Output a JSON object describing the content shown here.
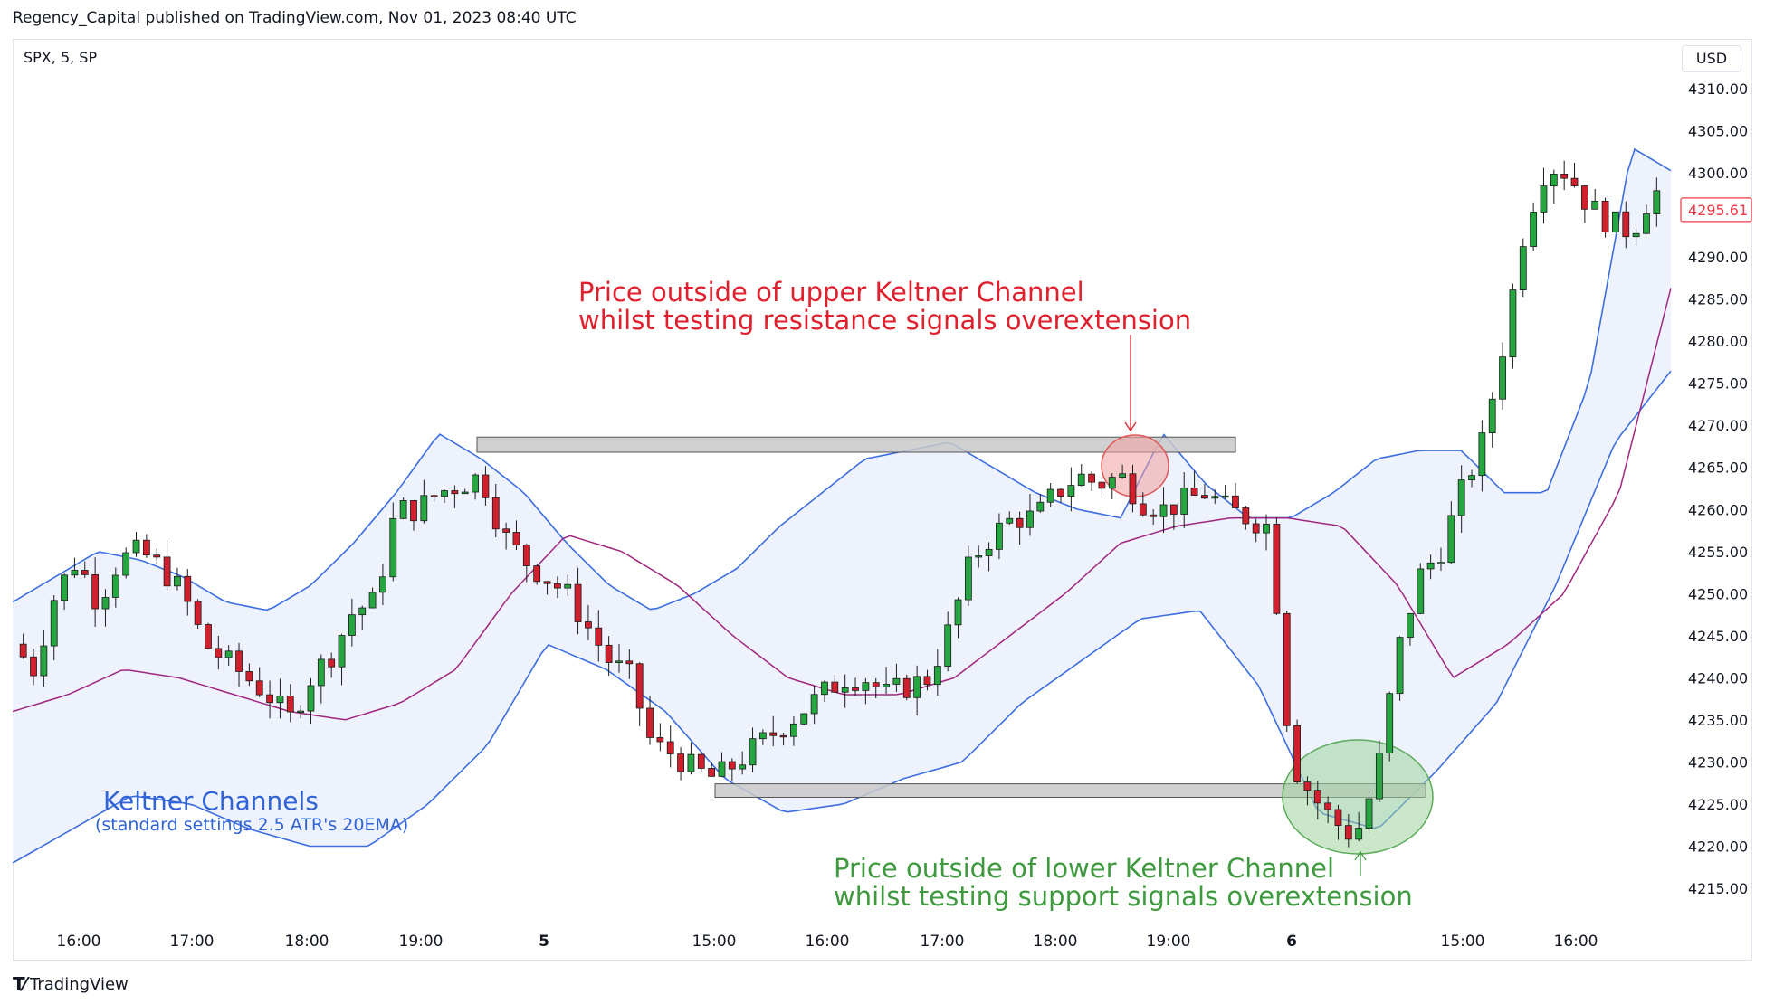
{
  "header": {
    "text": "Regency_Capital published on TradingView.com, Nov 01, 2023 08:40 UTC"
  },
  "symbol": "SPX, 5, SP",
  "currency": "USD",
  "footer": {
    "brand": "TradingView",
    "logo_icon": "tradingview-logo-icon"
  },
  "colors": {
    "up": "#089981",
    "up_fill": "#26a641",
    "down": "#f23645",
    "down_fill": "#d0202e",
    "band_line": "#3d6ee0",
    "band_fill": "#eef2fd",
    "mid_line": "#a0267e",
    "resist_text": "#e0202c",
    "support_text": "#3f9a3f",
    "keltner_text": "#2f63d6"
  },
  "chart_data": {
    "type": "candlestick",
    "title": "",
    "ylim": [
      4212,
      4313
    ],
    "y_ticks": [
      "4310.00",
      "4305.00",
      "4300.00",
      "4295.00",
      "4290.00",
      "4285.00",
      "4280.00",
      "4275.00",
      "4270.00",
      "4265.00",
      "4260.00",
      "4255.00",
      "4250.00",
      "4245.00",
      "4240.00",
      "4235.00",
      "4230.00",
      "4225.00",
      "4220.00",
      "4215.00"
    ],
    "x_ticks": [
      "16:00",
      "17:00",
      "18:00",
      "19:00",
      "5",
      "15:00",
      "16:00",
      "17:00",
      "18:00",
      "19:00",
      "6",
      "15:00",
      "16:00"
    ],
    "last_price": "4295.61",
    "close": [
      4244,
      4241,
      4250,
      4254,
      4249,
      4254,
      4255,
      4253,
      4250,
      4244,
      4242,
      4240,
      4238,
      4235,
      4240,
      4243,
      4248,
      4249,
      4260,
      4260,
      4262,
      4263,
      4264,
      4257,
      4254,
      4252,
      4250,
      4246,
      4242,
      4240,
      4232,
      4231,
      4229,
      4228,
      4230,
      4232,
      4234,
      4236,
      4238,
      4240,
      4240,
      4238,
      4239,
      4240,
      4246,
      4254,
      4257,
      4259,
      4259,
      4262,
      4264,
      4263,
      4264,
      4261,
      4260,
      4261,
      4262,
      4260,
      4259,
      4258,
      4230,
      4226,
      4223,
      4221,
      4228,
      4243,
      4252,
      4255,
      4262,
      4268,
      4280,
      4294,
      4301,
      4300,
      4296,
      4294,
      4293,
      4298,
      4296
    ],
    "upper_band": [
      4249,
      4252,
      4255,
      4254,
      4252,
      4249,
      4248,
      4251,
      4256,
      4262,
      4269,
      4266,
      4262,
      4256,
      4251,
      4248,
      4250,
      4253,
      4258,
      4262,
      4266,
      4267,
      4268,
      4265,
      4262,
      4260,
      4259,
      4269,
      4263,
      4259,
      4259,
      4262,
      4266,
      4267,
      4267,
      4262,
      4262,
      4275,
      4303,
      4300
    ],
    "middle_band": [
      4236,
      4238,
      4241,
      4240,
      4238,
      4236,
      4235,
      4237,
      4241,
      4250,
      4257,
      4255,
      4251,
      4245,
      4240,
      4238,
      4238,
      4240,
      4245,
      4250,
      4256,
      4258,
      4259,
      4259,
      4258,
      4251,
      4240,
      4244,
      4250,
      4262,
      4288
    ],
    "lower_band": [
      4218,
      4222,
      4226,
      4225,
      4222,
      4220,
      4220,
      4225,
      4232,
      4244,
      4241,
      4236,
      4228,
      4224,
      4225,
      4228,
      4230,
      4237,
      4242,
      4247,
      4248,
      4239,
      4224,
      4222,
      4229,
      4237,
      4251,
      4268,
      4277
    ],
    "resistance_zone": [
      4266.8,
      4268.6
    ],
    "support_zone": [
      4225.8,
      4227.4
    ],
    "annotations": {
      "resistance_note": [
        "Price outside of upper Keltner Channel",
        "whilst testing resistance signals overextension"
      ],
      "support_note": [
        "Price outside of lower Keltner Channel",
        "whilst testing support signals overextension"
      ],
      "indicator_title": "Keltner Channels",
      "indicator_subtitle": "(standard settings 2.5 ATR's 20EMA)"
    }
  }
}
